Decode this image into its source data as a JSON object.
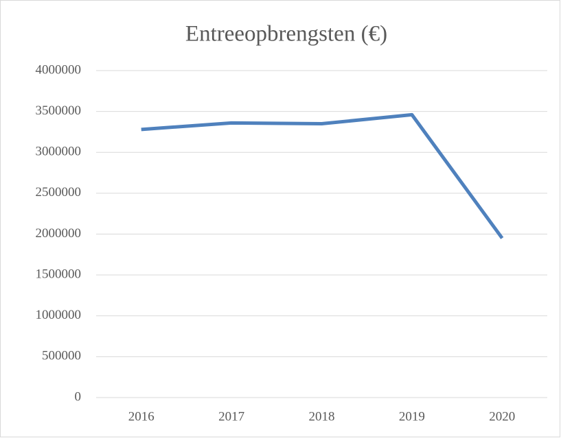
{
  "chart_data": {
    "type": "line",
    "title": "Entreeopbrengsten (€)",
    "categories": [
      "2016",
      "2017",
      "2018",
      "2019",
      "2020"
    ],
    "series": [
      {
        "name": "Entreeopbrengsten",
        "color": "#4f81bd",
        "values": [
          3280000,
          3360000,
          3350000,
          3460000,
          1950000
        ]
      }
    ],
    "ylim": [
      0,
      4000000
    ],
    "yticks": [
      0,
      500000,
      1000000,
      1500000,
      2000000,
      2500000,
      3000000,
      3500000,
      4000000
    ],
    "grid": true
  }
}
